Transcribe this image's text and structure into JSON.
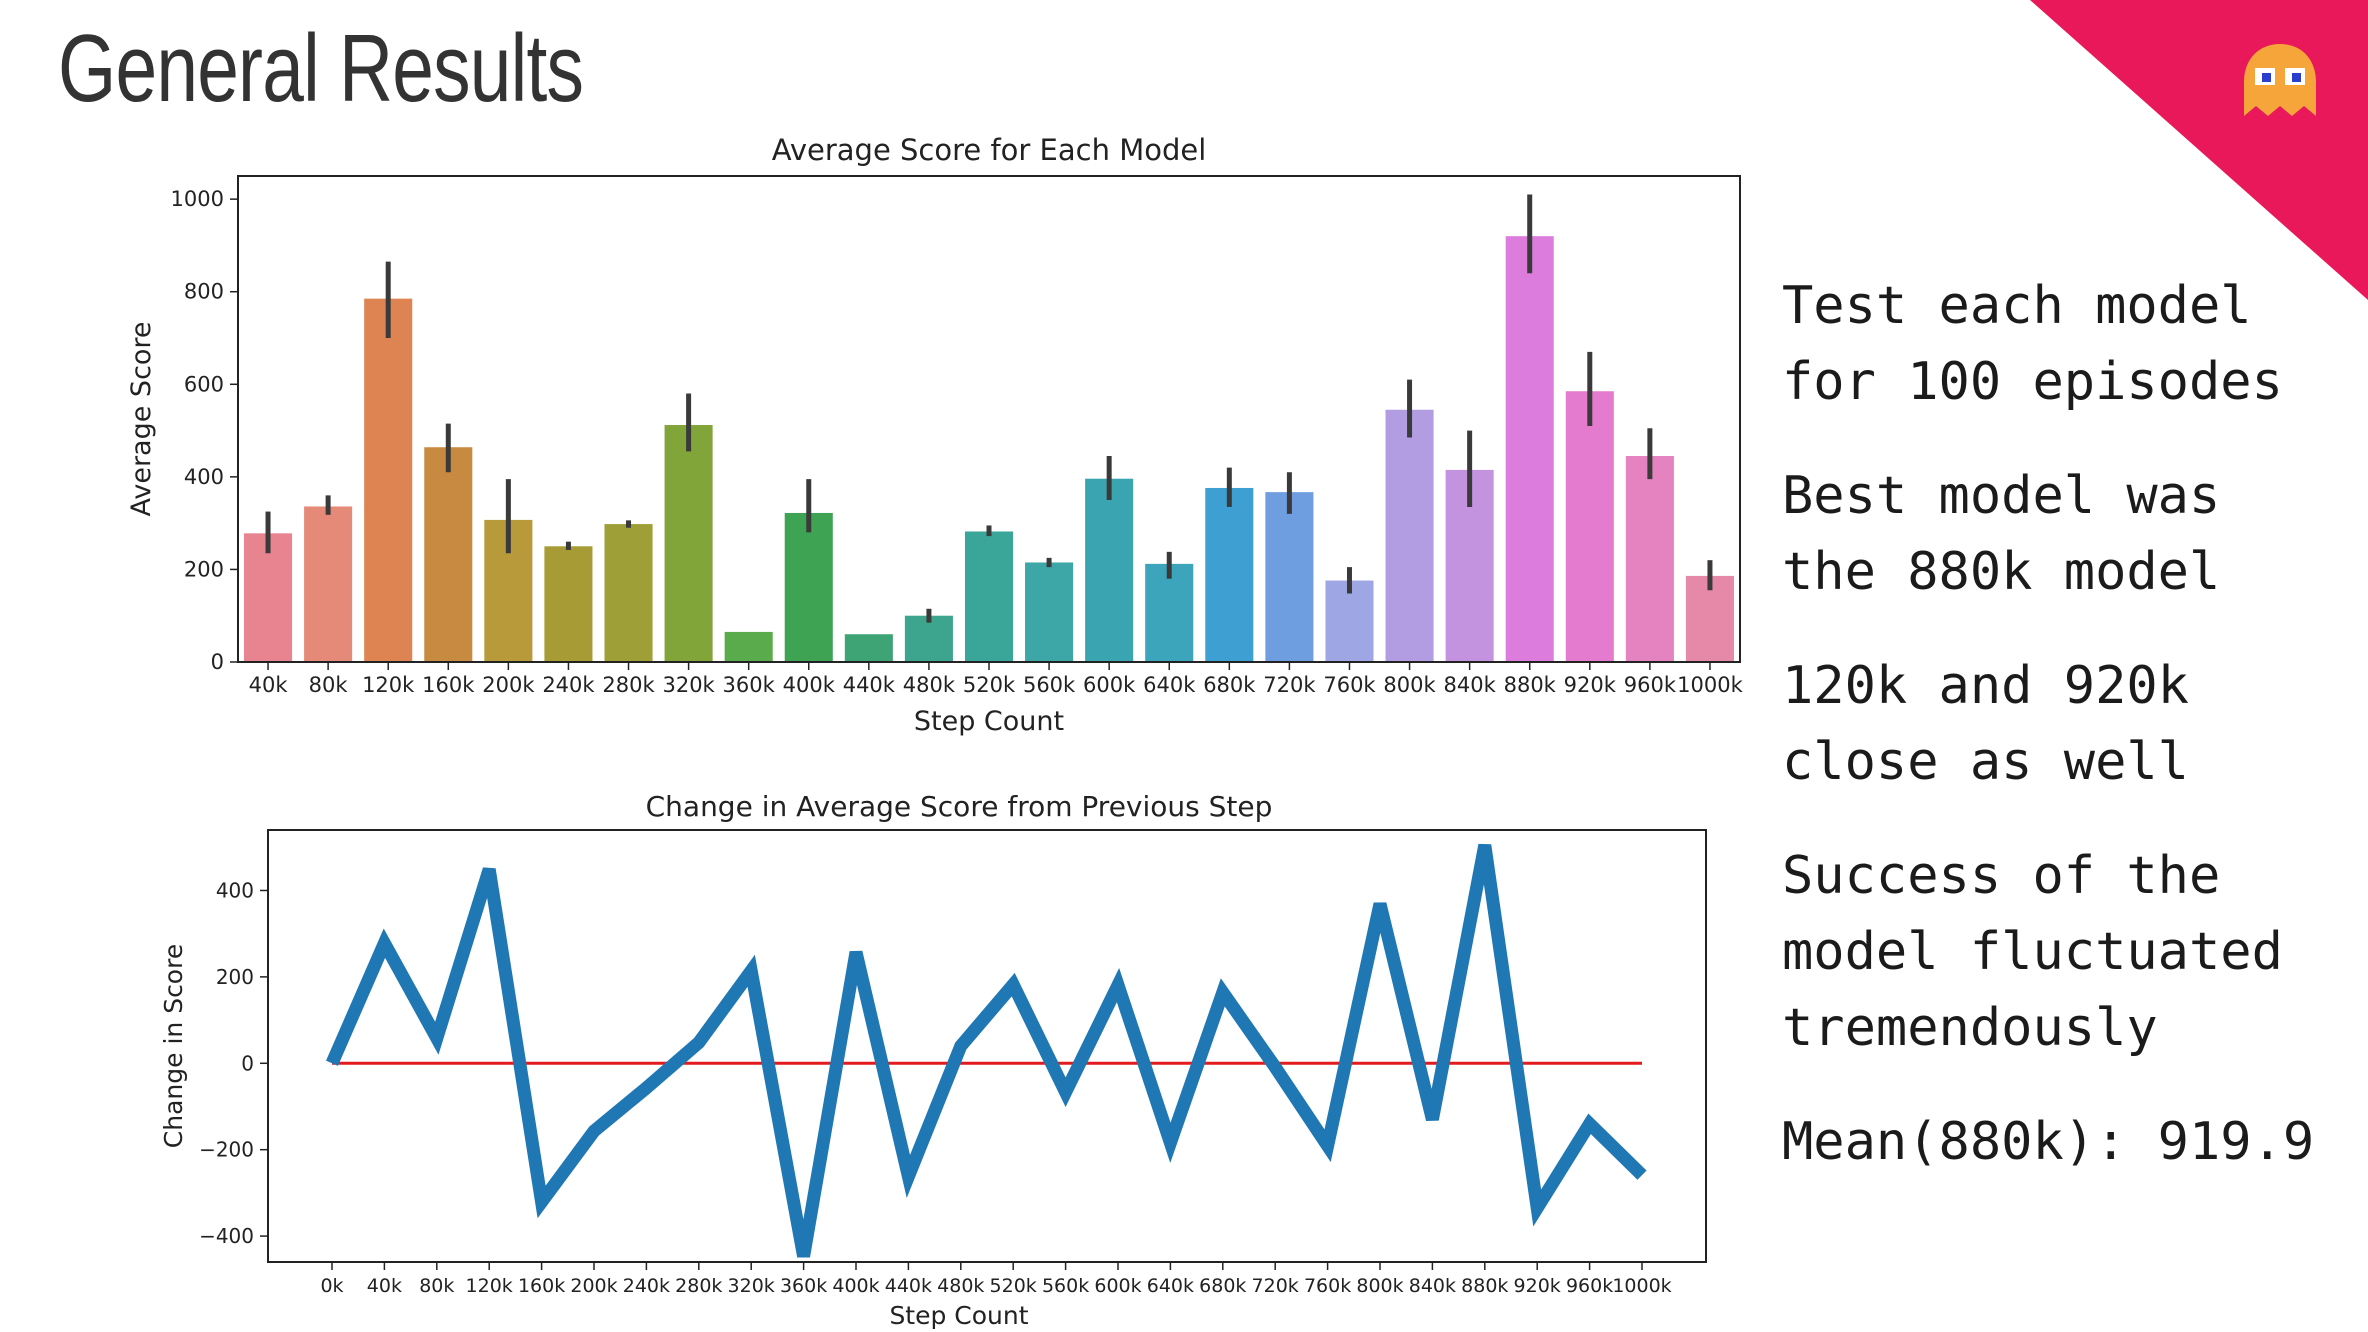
{
  "slide": {
    "title": "General Results",
    "accent_color": "#e8185a",
    "ghost_icon": "pacman-ghost-orange-icon",
    "notes": [
      "Test each model\nfor 100 episodes",
      "Best model was\nthe 880k model",
      "120k and 920k\nclose as well",
      "Success of the\nmodel fluctuated\ntremendously",
      "Mean(880k): 919.9"
    ]
  },
  "chart_data": [
    {
      "type": "bar",
      "title": "Average Score for Each Model",
      "xlabel": "Step Count",
      "ylabel": "Average Score",
      "ylim": [
        0,
        1050
      ],
      "yticks": [
        0,
        200,
        400,
        600,
        800,
        1000
      ],
      "grid": false,
      "categories": [
        "40k",
        "80k",
        "120k",
        "160k",
        "200k",
        "240k",
        "280k",
        "320k",
        "360k",
        "400k",
        "440k",
        "480k",
        "520k",
        "560k",
        "600k",
        "640k",
        "680k",
        "720k",
        "760k",
        "800k",
        "840k",
        "880k",
        "920k",
        "960k",
        "1000k"
      ],
      "values": [
        278,
        336,
        785,
        464,
        307,
        250,
        298,
        512,
        65,
        322,
        60,
        100,
        282,
        215,
        396,
        212,
        376,
        367,
        176,
        545,
        415,
        920,
        585,
        445,
        186
      ],
      "error_bars": [
        [
          235,
          325
        ],
        [
          318,
          360
        ],
        [
          700,
          865
        ],
        [
          410,
          515
        ],
        [
          235,
          395
        ],
        [
          242,
          260
        ],
        [
          290,
          306
        ],
        [
          455,
          580
        ],
        [
          65,
          65
        ],
        [
          280,
          395
        ],
        [
          60,
          60
        ],
        [
          85,
          115
        ],
        [
          272,
          295
        ],
        [
          205,
          225
        ],
        [
          350,
          445
        ],
        [
          180,
          238
        ],
        [
          335,
          420
        ],
        [
          320,
          410
        ],
        [
          148,
          205
        ],
        [
          485,
          610
        ],
        [
          335,
          500
        ],
        [
          840,
          1010
        ],
        [
          510,
          670
        ],
        [
          395,
          505
        ],
        [
          155,
          220
        ]
      ],
      "colors": [
        "#e8848f",
        "#e58a78",
        "#dd8452",
        "#c88a40",
        "#b89a3a",
        "#a79b36",
        "#9e9f36",
        "#82a53a",
        "#5aab4b",
        "#3ea454",
        "#3ea475",
        "#3da58d",
        "#3aa69a",
        "#3ca7a6",
        "#3aa4b1",
        "#3ca4bb",
        "#3ea0d2",
        "#6e9de0",
        "#9ea6e4",
        "#b29ce2",
        "#c493e0",
        "#dc7cdc",
        "#e47bcf",
        "#e582c0",
        "#e689a9"
      ]
    },
    {
      "type": "line",
      "title": "Change in Average Score from Previous Step",
      "xlabel": "Step Count",
      "ylabel": "Change in Score",
      "ylim": [
        -460,
        540
      ],
      "yticks": [
        -400,
        -200,
        0,
        200,
        400
      ],
      "grid": false,
      "categories": [
        "0k",
        "40k",
        "80k",
        "120k",
        "160k",
        "200k",
        "240k",
        "280k",
        "320k",
        "360k",
        "400k",
        "440k",
        "480k",
        "520k",
        "560k",
        "600k",
        "640k",
        "680k",
        "720k",
        "760k",
        "800k",
        "840k",
        "880k",
        "920k",
        "960k",
        "1000k"
      ],
      "series": [
        {
          "values": [
            0,
            278,
            58,
            449,
            -321,
            -157,
            -57,
            48,
            214,
            -447,
            257,
            -262,
            40,
            182,
            -67,
            181,
            -184,
            164,
            -9,
            -191,
            369,
            -130,
            505,
            -335,
            -140,
            -259
          ],
          "color": "#1f77b4"
        },
        {
          "values": [
            0,
            0,
            0,
            0,
            0,
            0,
            0,
            0,
            0,
            0,
            0,
            0,
            0,
            0,
            0,
            0,
            0,
            0,
            0,
            0,
            0,
            0,
            0,
            0,
            0,
            0
          ],
          "color": "#e41a1c"
        }
      ]
    }
  ]
}
